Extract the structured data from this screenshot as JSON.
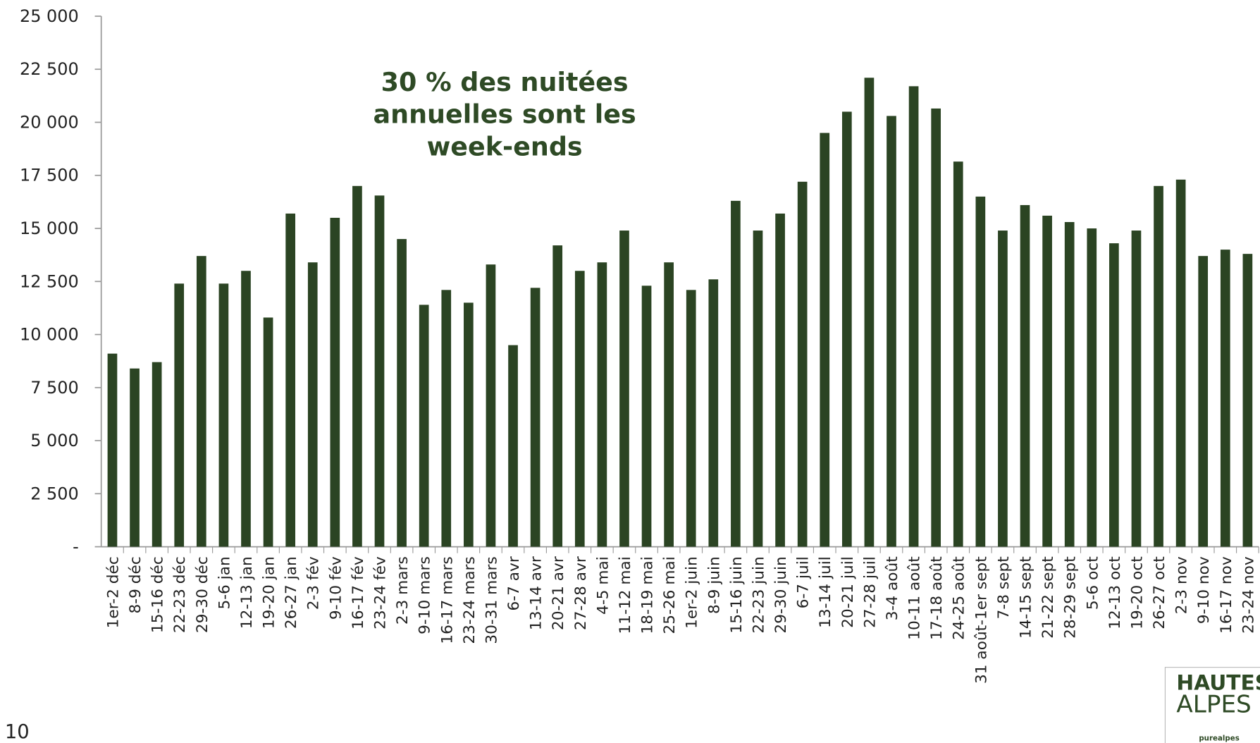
{
  "chart_data": {
    "type": "bar",
    "annotation": [
      "30 % des nuitées",
      "annuelles sont les",
      "week-ends"
    ],
    "categories": [
      "1er-2 déc",
      "8-9 déc",
      "15-16 déc",
      "22-23 déc",
      "29-30 déc",
      "5-6 jan",
      "12-13 jan",
      "19-20 jan",
      "26-27 jan",
      "2-3 fév",
      "9-10 fév",
      "16-17 fév",
      "23-24 fév",
      "2-3 mars",
      "9-10 mars",
      "16-17 mars",
      "23-24 mars",
      "30-31 mars",
      "6-7 avr",
      "13-14 avr",
      "20-21 avr",
      "27-28 avr",
      "4-5 mai",
      "11-12 mai",
      "18-19 mai",
      "25-26 mai",
      "1er-2 juin",
      "8-9 juin",
      "15-16 juin",
      "22-23 juin",
      "29-30 juin",
      "6-7 juil",
      "13-14 juil",
      "20-21 juil",
      "27-28 juil",
      "3-4 août",
      "10-11 août",
      "17-18 août",
      "24-25 août",
      "31 août-1er sept",
      "7-8 sept",
      "14-15 sept",
      "21-22 sept",
      "28-29 sept",
      "5-6 oct",
      "12-13 oct",
      "19-20 oct",
      "26-27 oct",
      "2-3 nov",
      "9-10 nov",
      "16-17 nov",
      "23-24 nov"
    ],
    "values": [
      9100,
      8400,
      8700,
      12400,
      13700,
      12400,
      13000,
      10800,
      15700,
      13400,
      15500,
      17000,
      16550,
      14500,
      11400,
      12100,
      11500,
      13300,
      9500,
      12200,
      14200,
      13000,
      13400,
      14900,
      12300,
      13400,
      12100,
      12600,
      16300,
      14900,
      15700,
      17200,
      19500,
      20500,
      22100,
      20300,
      21700,
      20650,
      18150,
      16500,
      14900,
      16100,
      15600,
      15300,
      15000,
      14300,
      14900,
      17000,
      17300,
      13700,
      14000,
      13800
    ],
    "color": "#2b4423",
    "ylim": [
      0,
      25000
    ],
    "yticks": [
      {
        "value": 0,
        "label": "-"
      },
      {
        "value": 2500,
        "label": "2 500"
      },
      {
        "value": 5000,
        "label": "5 000"
      },
      {
        "value": 7500,
        "label": "7 500"
      },
      {
        "value": 10000,
        "label": "10 000"
      },
      {
        "value": 12500,
        "label": "12 500"
      },
      {
        "value": 15000,
        "label": "15 000"
      },
      {
        "value": 17500,
        "label": "17 500"
      },
      {
        "value": 20000,
        "label": "20 000"
      },
      {
        "value": 22500,
        "label": "22 500"
      },
      {
        "value": 25000,
        "label": "25 000"
      }
    ]
  },
  "page_number": "10",
  "logo": {
    "line1": "HAUTES",
    "line2": "ALPES",
    "tagline": "purealpes"
  }
}
